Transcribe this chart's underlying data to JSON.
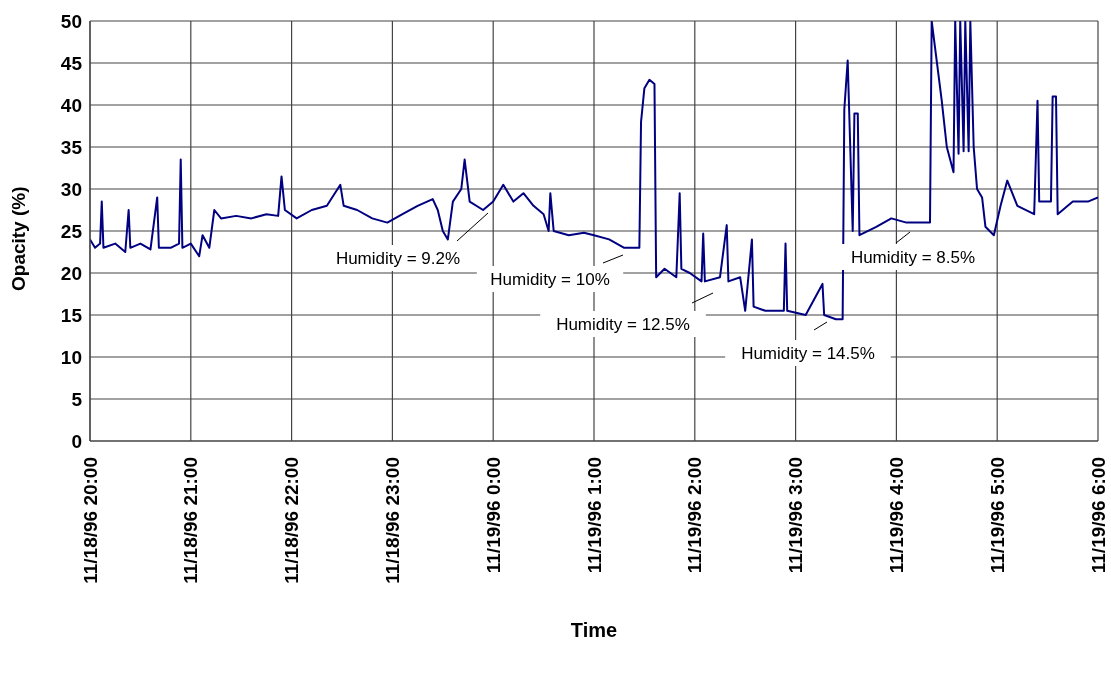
{
  "chart_data": {
    "type": "line",
    "xlabel": "Time",
    "ylabel": "Opacity (%)",
    "xlim": [
      "1996-11-18T20:00",
      "1996-11-19T06:00"
    ],
    "ylim": [
      0,
      50
    ],
    "xticks": [
      {
        "value": "1996-11-18T20:00",
        "label": "11/18/96 20:00"
      },
      {
        "value": "1996-11-18T21:00",
        "label": "11/18/96 21:00"
      },
      {
        "value": "1996-11-18T22:00",
        "label": "11/18/96 22:00"
      },
      {
        "value": "1996-11-18T23:00",
        "label": "11/18/96 23:00"
      },
      {
        "value": "1996-11-19T00:00",
        "label": "11/19/96 0:00"
      },
      {
        "value": "1996-11-19T01:00",
        "label": "11/19/96 1:00"
      },
      {
        "value": "1996-11-19T02:00",
        "label": "11/19/96 2:00"
      },
      {
        "value": "1996-11-19T03:00",
        "label": "11/19/96 3:00"
      },
      {
        "value": "1996-11-19T04:00",
        "label": "11/19/96 4:00"
      },
      {
        "value": "1996-11-19T05:00",
        "label": "11/19/96 5:00"
      },
      {
        "value": "1996-11-19T06:00",
        "label": "11/19/96 6:00"
      }
    ],
    "yticks": [
      0,
      5,
      10,
      15,
      20,
      25,
      30,
      35,
      40,
      45,
      50
    ],
    "grid": true,
    "series": [
      {
        "color": "#000080",
        "x": [
          "1996-11-18T20:00",
          "1996-11-18T20:03",
          "1996-11-18T20:06",
          "1996-11-18T20:07",
          "1996-11-18T20:08",
          "1996-11-18T20:15",
          "1996-11-18T20:21",
          "1996-11-18T20:23",
          "1996-11-18T20:24",
          "1996-11-18T20:30",
          "1996-11-18T20:36",
          "1996-11-18T20:40",
          "1996-11-18T20:41",
          "1996-11-18T20:48",
          "1996-11-18T20:53",
          "1996-11-18T20:54",
          "1996-11-18T20:55",
          "1996-11-18T21:00",
          "1996-11-18T21:05",
          "1996-11-18T21:07",
          "1996-11-18T21:11",
          "1996-11-18T21:14",
          "1996-11-18T21:18",
          "1996-11-18T21:27",
          "1996-11-18T21:36",
          "1996-11-18T21:45",
          "1996-11-18T21:52",
          "1996-11-18T21:54",
          "1996-11-18T21:56",
          "1996-11-18T22:03",
          "1996-11-18T22:12",
          "1996-11-18T22:21",
          "1996-11-18T22:29",
          "1996-11-18T22:31",
          "1996-11-18T22:39",
          "1996-11-18T22:48",
          "1996-11-18T22:57",
          "1996-11-18T23:06",
          "1996-11-18T23:15",
          "1996-11-18T23:24",
          "1996-11-18T23:27",
          "1996-11-18T23:30",
          "1996-11-18T23:33",
          "1996-11-18T23:36",
          "1996-11-18T23:41",
          "1996-11-18T23:43",
          "1996-11-18T23:46",
          "1996-11-18T23:54",
          "1996-11-19T00:00",
          "1996-11-19T00:06",
          "1996-11-19T00:12",
          "1996-11-19T00:18",
          "1996-11-19T00:24",
          "1996-11-19T00:30",
          "1996-11-19T00:33",
          "1996-11-19T00:34",
          "1996-11-19T00:36",
          "1996-11-19T00:45",
          "1996-11-19T00:54",
          "1996-11-19T01:00",
          "1996-11-19T01:09",
          "1996-11-19T01:18",
          "1996-11-19T01:27",
          "1996-11-19T01:28",
          "1996-11-19T01:30",
          "1996-11-19T01:33",
          "1996-11-19T01:36",
          "1996-11-19T01:37",
          "1996-11-19T01:42",
          "1996-11-19T01:49",
          "1996-11-19T01:51",
          "1996-11-19T01:52",
          "1996-11-19T01:57",
          "1996-11-19T02:04",
          "1996-11-19T02:05",
          "1996-11-19T02:06",
          "1996-11-19T02:15",
          "1996-11-19T02:19",
          "1996-11-19T02:20",
          "1996-11-19T02:27",
          "1996-11-19T02:30",
          "1996-11-19T02:34",
          "1996-11-19T02:35",
          "1996-11-19T02:42",
          "1996-11-19T02:53",
          "1996-11-19T02:54",
          "1996-11-19T02:55",
          "1996-11-19T03:06",
          "1996-11-19T03:16",
          "1996-11-19T03:17",
          "1996-11-19T03:24",
          "1996-11-19T03:28",
          "1996-11-19T03:29",
          "1996-11-19T03:31",
          "1996-11-19T03:34",
          "1996-11-19T03:35",
          "1996-11-19T03:37",
          "1996-11-19T03:38",
          "1996-11-19T03:48",
          "1996-11-19T03:57",
          "1996-11-19T04:06",
          "1996-11-19T04:15",
          "1996-11-19T04:20",
          "1996-11-19T04:21",
          "1996-11-19T04:27",
          "1996-11-19T04:30",
          "1996-11-19T04:34",
          "1996-11-19T04:35",
          "1996-11-19T04:37",
          "1996-11-19T04:38",
          "1996-11-19T04:40",
          "1996-11-19T04:41",
          "1996-11-19T04:43",
          "1996-11-19T04:44",
          "1996-11-19T04:46",
          "1996-11-19T04:48",
          "1996-11-19T04:51",
          "1996-11-19T04:53",
          "1996-11-19T04:58",
          "1996-11-19T05:02",
          "1996-11-19T05:06",
          "1996-11-19T05:12",
          "1996-11-19T05:22",
          "1996-11-19T05:24",
          "1996-11-19T05:25",
          "1996-11-19T05:32",
          "1996-11-19T05:33",
          "1996-11-19T05:35",
          "1996-11-19T05:36",
          "1996-11-19T05:45",
          "1996-11-19T05:54",
          "1996-11-19T06:00"
        ],
        "values": [
          24,
          23,
          23.5,
          28.5,
          23,
          23.5,
          22.5,
          27.5,
          23,
          23.5,
          22.8,
          29,
          23,
          23,
          23.5,
          33.5,
          23,
          23.5,
          22,
          24.5,
          23,
          27.5,
          26.5,
          26.8,
          26.5,
          27,
          26.8,
          31.5,
          27.5,
          26.5,
          27.5,
          28,
          30.5,
          28,
          27.5,
          26.5,
          26,
          27,
          28,
          28.8,
          27.5,
          25,
          24,
          28.5,
          30,
          33.5,
          28.5,
          27.5,
          28.5,
          30.5,
          28.5,
          29.5,
          28,
          27,
          25,
          29.5,
          25,
          24.5,
          24.8,
          24.5,
          24,
          23,
          23,
          38,
          42,
          43,
          42.5,
          19.5,
          20.5,
          19.5,
          29.5,
          20.5,
          20,
          19,
          24.7,
          19,
          19.5,
          25.7,
          19,
          19.5,
          15.5,
          24,
          16,
          15.5,
          15.5,
          23.5,
          15.5,
          15,
          18.7,
          15,
          14.5,
          14.5,
          39.5,
          45.3,
          25,
          39,
          39,
          24.5,
          25.5,
          26.5,
          26,
          26,
          26,
          50,
          40.5,
          35,
          32,
          50,
          34.2,
          50,
          34.5,
          50,
          34.5,
          50,
          35,
          30,
          29,
          25.5,
          24.5,
          28,
          31,
          28,
          27,
          40.5,
          28.5,
          28.5,
          41,
          41,
          27,
          28.5,
          28.5,
          29
        ]
      }
    ],
    "annotations": [
      "Humidity = 9.2%",
      "Humidity = 10%",
      "Humidity = 12.5%",
      "Humidity = 14.5%",
      "Humidity = 8.5%"
    ]
  }
}
